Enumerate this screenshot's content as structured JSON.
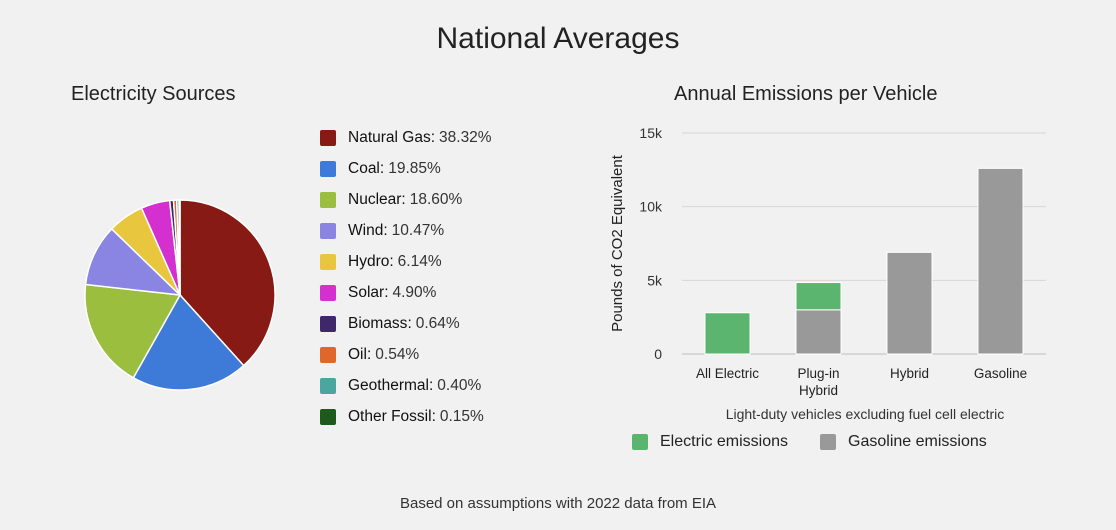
{
  "title": "National Averages",
  "footnote": "Based on assumptions with 2022 data from EIA",
  "chart_data": [
    {
      "type": "pie",
      "title": "Electricity Sources",
      "legend_position": "right",
      "slices": [
        {
          "label": "Natural Gas",
          "value": 38.32,
          "display": "38.32%",
          "color": "#871a14"
        },
        {
          "label": "Coal",
          "value": 19.85,
          "display": "19.85%",
          "color": "#3e7bd8"
        },
        {
          "label": "Nuclear",
          "value": 18.6,
          "display": "18.60%",
          "color": "#9bbe3e"
        },
        {
          "label": "Wind",
          "value": 10.47,
          "display": "10.47%",
          "color": "#8a85e2"
        },
        {
          "label": "Hydro",
          "value": 6.14,
          "display": "6.14%",
          "color": "#e8c73e"
        },
        {
          "label": "Solar",
          "value": 4.9,
          "display": "4.90%",
          "color": "#d42fcf"
        },
        {
          "label": "Biomass",
          "value": 0.64,
          "display": "0.64%",
          "color": "#40276b"
        },
        {
          "label": "Oil",
          "value": 0.54,
          "display": "0.54%",
          "color": "#e0672b"
        },
        {
          "label": "Geothermal",
          "value": 0.4,
          "display": "0.40%",
          "color": "#4aa69e"
        },
        {
          "label": "Other Fossil",
          "value": 0.15,
          "display": "0.15%",
          "color": "#1e5a1e"
        }
      ]
    },
    {
      "type": "bar",
      "stacked": true,
      "title": "Annual Emissions per Vehicle",
      "ylabel": "Pounds of CO2 Equivalent",
      "xlabel": "Light-duty vehicles excluding fuel cell electric",
      "ylim": [
        0,
        15000
      ],
      "yticks": [
        {
          "value": 0,
          "label": "0"
        },
        {
          "value": 5000,
          "label": "5k"
        },
        {
          "value": 10000,
          "label": "10k"
        },
        {
          "value": 15000,
          "label": "15k"
        }
      ],
      "grid": true,
      "legend_position": "bottom",
      "categories": [
        {
          "lines": [
            "All Electric"
          ]
        },
        {
          "lines": [
            "Plug-in",
            "Hybrid"
          ]
        },
        {
          "lines": [
            "Hybrid"
          ]
        },
        {
          "lines": [
            "Gasoline"
          ]
        }
      ],
      "series": [
        {
          "name": "Gasoline emissions",
          "color": "#999999",
          "values": [
            0,
            3000,
            6900,
            12600
          ]
        },
        {
          "name": "Electric emissions",
          "color": "#5bb56e",
          "values": [
            2800,
            1850,
            0,
            0
          ]
        }
      ]
    }
  ]
}
